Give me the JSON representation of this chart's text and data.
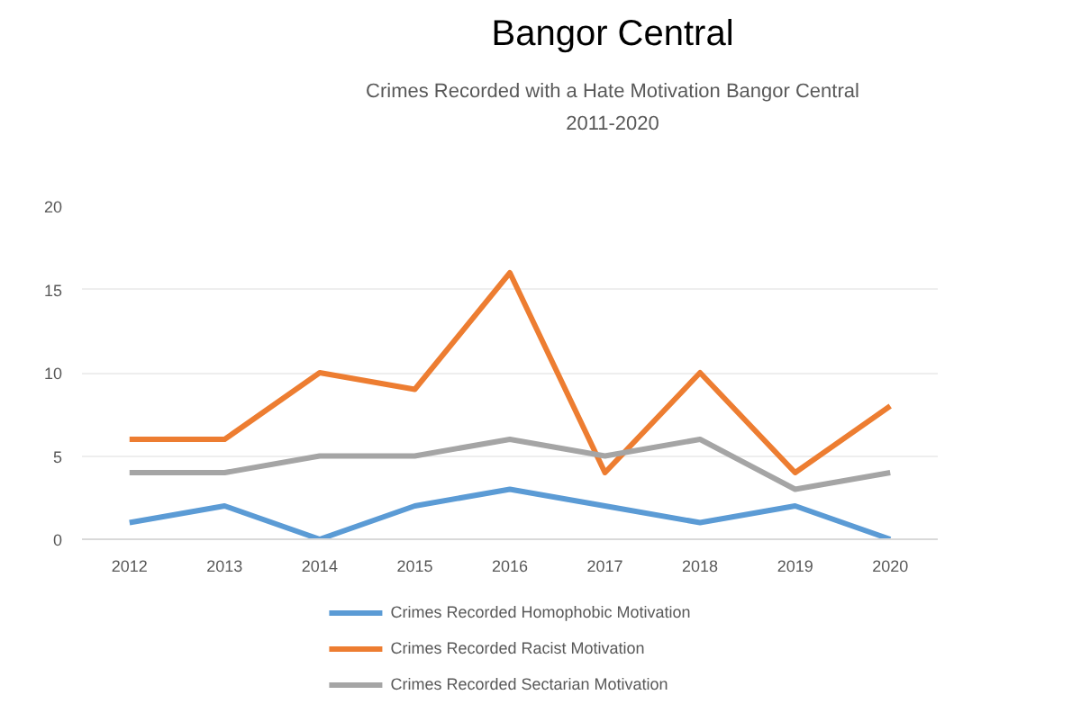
{
  "chart_data": {
    "type": "line",
    "title": "Bangor Central",
    "subtitle": "Crimes Recorded with a Hate Motivation Bangor Central\n2011-2020",
    "categories": [
      "2012",
      "2013",
      "2014",
      "2015",
      "2016",
      "2017",
      "2018",
      "2019",
      "2020"
    ],
    "series": [
      {
        "name": "Crimes Recorded Homophobic Motivation",
        "color": "#5b9bd5",
        "values": [
          1,
          2,
          0,
          2,
          3,
          2,
          1,
          2,
          0
        ]
      },
      {
        "name": "Crimes Recorded Racist Motivation",
        "color": "#ed7d31",
        "values": [
          6,
          6,
          10,
          9,
          16,
          4,
          10,
          4,
          8
        ]
      },
      {
        "name": "Crimes Recorded Sectarian Motivation",
        "color": "#a5a5a5",
        "values": [
          4,
          4,
          5,
          5,
          6,
          5,
          6,
          3,
          4
        ]
      }
    ],
    "ylim": [
      0,
      20
    ],
    "yticks": [
      0,
      5,
      10,
      15,
      20
    ],
    "grid": "y",
    "legend": "bottom"
  }
}
